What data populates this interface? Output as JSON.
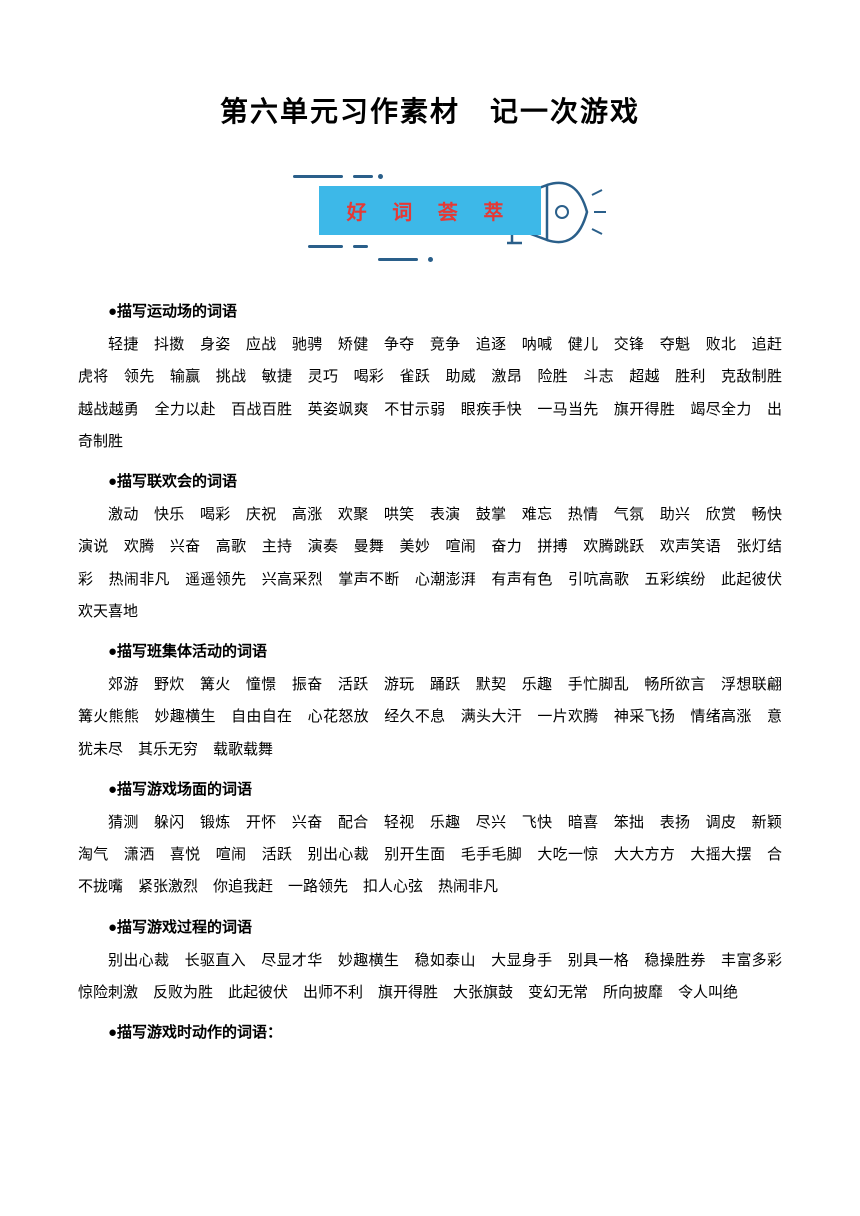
{
  "title": "第六单元习作素材　记一次游戏",
  "banner_text": "好 词 荟 萃",
  "banner_bg": "#3db8e8",
  "banner_text_color": "#e53935",
  "deco_color": "#2a5f8a",
  "sections": [
    {
      "header": "●描写运动场的词语",
      "content": "轻捷　抖擞　身姿　应战　驰骋　矫健　争夺　竞争　追逐　呐喊　健儿　交锋　夺魁　败北　追赶　虎将　领先　输赢　挑战　敏捷　灵巧　喝彩　雀跃　助威　激昂　险胜　斗志　超越　胜利　克敌制胜　越战越勇　全力以赴　百战百胜　英姿飒爽　不甘示弱　眼疾手快　一马当先　旗开得胜　竭尽全力　出奇制胜"
    },
    {
      "header": "●描写联欢会的词语",
      "content": "激动　快乐　喝彩　庆祝　高涨　欢聚　哄笑　表演　鼓掌　难忘　热情　气氛　助兴　欣赏　畅快　演说　欢腾　兴奋　高歌　主持　演奏　曼舞　美妙　喧闹　奋力　拼搏　欢腾跳跃　欢声笑语　张灯结彩　热闹非凡　遥遥领先　兴高采烈　掌声不断　心潮澎湃　有声有色　引吭高歌　五彩缤纷　此起彼伏　欢天喜地"
    },
    {
      "header": "●描写班集体活动的词语",
      "content": "郊游　野炊　篝火　憧憬　振奋　活跃　游玩　踊跃　默契　乐趣　手忙脚乱　畅所欲言　浮想联翩　篝火熊熊　妙趣横生　自由自在　心花怒放　经久不息　满头大汗　一片欢腾　神采飞扬　情绪高涨　意犹未尽　其乐无穷　载歌载舞"
    },
    {
      "header": "●描写游戏场面的词语",
      "content": "猜测　躲闪　锻炼　开怀　兴奋　配合　轻视　乐趣　尽兴　飞快　暗喜　笨拙　表扬　调皮　新颖　淘气　潇洒　喜悦　喧闹　活跃　别出心裁　别开生面　毛手毛脚　大吃一惊　大大方方　大摇大摆　合不拢嘴　紧张激烈　你追我赶　一路领先　扣人心弦　热闹非凡"
    },
    {
      "header": "●描写游戏过程的词语",
      "content": "别出心裁　长驱直入　尽显才华　妙趣横生　稳如泰山　大显身手　别具一格　稳操胜券　丰富多彩　惊险刺激　反败为胜　此起彼伏　出师不利　旗开得胜　大张旗鼓　变幻无常　所向披靡　令人叫绝"
    },
    {
      "header": "●描写游戏时动作的词语：",
      "content": ""
    }
  ]
}
